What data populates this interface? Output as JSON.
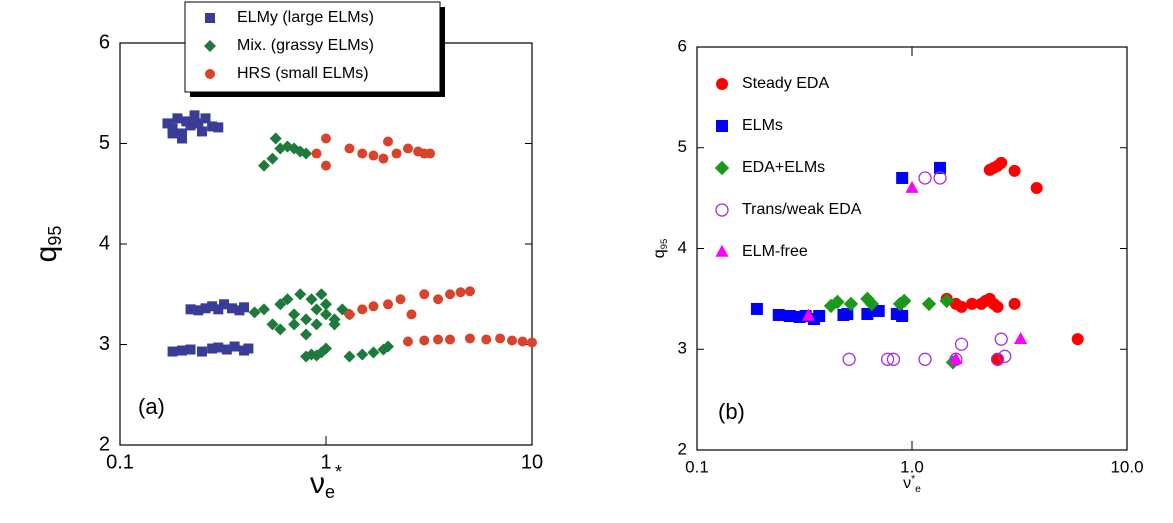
{
  "chart_data": [
    {
      "type": "scatter",
      "annotation": "(a)",
      "xlabel": "ν",
      "xlabel_sub": "e",
      "xlabel_sup": "*",
      "ylabel": "q",
      "ylabel_sub": "95",
      "log_x": true,
      "xlim": [
        0.1,
        10
      ],
      "xticks": [
        0.1,
        1,
        10
      ],
      "ylim": [
        2,
        6
      ],
      "yticks": [
        2,
        3,
        4,
        5,
        6
      ],
      "legend": "top-center",
      "legend_box": true,
      "series": [
        {
          "name": "ELMy (large ELMs)",
          "color": "#3a3d97",
          "marker": "square",
          "x": [
            0.17,
            0.18,
            0.19,
            0.2,
            0.21,
            0.22,
            0.24,
            0.26,
            0.28,
            0.3,
            0.18,
            0.2,
            0.23,
            0.25,
            0.22,
            0.24,
            0.26,
            0.28,
            0.3,
            0.32,
            0.35,
            0.38,
            0.4,
            0.18,
            0.2,
            0.22,
            0.25,
            0.28,
            0.3,
            0.33,
            0.36,
            0.4,
            0.42
          ],
          "values": [
            5.2,
            5.15,
            5.25,
            5.1,
            5.22,
            5.18,
            5.2,
            5.25,
            5.17,
            5.16,
            5.1,
            5.05,
            5.28,
            5.12,
            3.35,
            3.34,
            3.36,
            3.38,
            3.35,
            3.4,
            3.36,
            3.34,
            3.37,
            2.93,
            2.94,
            2.95,
            2.93,
            2.96,
            2.97,
            2.95,
            2.98,
            2.94,
            2.96
          ]
        },
        {
          "name": "Mix. (grassy ELMs)",
          "color": "#1e7a3a",
          "marker": "diamond",
          "x": [
            0.5,
            0.55,
            0.57,
            0.6,
            0.65,
            0.7,
            0.75,
            0.8,
            0.45,
            0.5,
            0.55,
            0.6,
            0.65,
            0.7,
            0.75,
            0.8,
            0.85,
            0.9,
            0.95,
            1.0,
            1.1,
            1.2,
            1.3,
            0.6,
            0.7,
            0.8,
            0.9,
            1.0,
            1.1,
            0.8,
            0.85,
            0.9,
            0.95,
            1.0,
            1.3,
            1.5,
            1.7,
            1.9,
            2.0
          ],
          "values": [
            4.78,
            4.85,
            5.05,
            4.95,
            4.97,
            4.95,
            4.92,
            4.9,
            3.32,
            3.35,
            3.2,
            3.4,
            3.45,
            3.3,
            3.5,
            3.25,
            3.45,
            3.35,
            3.5,
            3.4,
            3.25,
            3.35,
            3.3,
            3.15,
            3.2,
            3.1,
            3.2,
            3.3,
            3.2,
            2.88,
            2.9,
            2.89,
            2.92,
            2.96,
            2.88,
            2.9,
            2.92,
            2.95,
            2.98
          ]
        },
        {
          "name": "HRS (small ELMs)",
          "color": "#d9432c",
          "marker": "circle",
          "x": [
            0.9,
            1.0,
            1.0,
            1.3,
            1.5,
            1.7,
            1.9,
            2.0,
            2.2,
            2.5,
            2.8,
            3.0,
            3.2,
            1.3,
            1.5,
            1.7,
            2.0,
            2.3,
            2.6,
            3.0,
            3.5,
            4.0,
            4.5,
            5.0,
            2.5,
            3.0,
            3.5,
            4.0,
            5.0,
            6.0,
            7.0,
            8.0,
            9.0,
            10.0
          ],
          "values": [
            4.9,
            4.78,
            5.05,
            4.95,
            4.9,
            4.88,
            4.85,
            5.02,
            4.9,
            4.95,
            4.92,
            4.9,
            4.9,
            3.3,
            3.35,
            3.38,
            3.4,
            3.45,
            3.3,
            3.5,
            3.45,
            3.5,
            3.52,
            3.53,
            3.03,
            3.04,
            3.05,
            3.05,
            3.06,
            3.05,
            3.06,
            3.04,
            3.03,
            3.02
          ]
        }
      ]
    },
    {
      "type": "scatter",
      "annotation": "(b)",
      "xlabel": "ν",
      "xlabel_sub": "e",
      "xlabel_sup": "*",
      "ylabel": "q",
      "ylabel_sub": "95",
      "log_x": true,
      "xlim": [
        0.1,
        10
      ],
      "xticks": [
        0.1,
        {
          "value": 1,
          "label": "1.0"
        },
        {
          "value": 10,
          "label": "10.0"
        }
      ],
      "ylim": [
        2,
        6
      ],
      "yticks": [
        2,
        3,
        4,
        5,
        6
      ],
      "legend": "top-left",
      "legend_box": false,
      "series": [
        {
          "name": "Steady EDA",
          "color": "#ff0000",
          "marker": "circle",
          "x": [
            1.45,
            1.6,
            1.7,
            1.9,
            2.1,
            2.2,
            2.3,
            2.4,
            2.5,
            2.5,
            3.0,
            5.9,
            2.3,
            2.4,
            2.5,
            2.6,
            3.0,
            3.8
          ],
          "values": [
            3.5,
            3.45,
            3.42,
            3.45,
            3.45,
            3.48,
            3.5,
            3.45,
            3.42,
            2.9,
            3.45,
            3.1,
            4.78,
            4.8,
            4.82,
            4.85,
            4.77,
            4.6
          ]
        },
        {
          "name": "ELMs",
          "color": "#0000ff",
          "marker": "square",
          "x": [
            0.19,
            0.24,
            0.27,
            0.3,
            0.32,
            0.35,
            0.37,
            0.48,
            0.5,
            0.62,
            0.7,
            0.85,
            0.9,
            0.9,
            1.35
          ],
          "values": [
            3.4,
            3.34,
            3.33,
            3.32,
            3.33,
            3.3,
            3.33,
            3.34,
            3.35,
            3.35,
            3.38,
            3.35,
            3.33,
            4.7,
            4.8
          ]
        },
        {
          "name": "EDA+ELMs",
          "color": "#1a9a1a",
          "marker": "diamond",
          "x": [
            0.42,
            0.45,
            0.52,
            0.62,
            0.65,
            0.88,
            0.92,
            1.2,
            1.45,
            1.55
          ],
          "values": [
            3.43,
            3.47,
            3.45,
            3.5,
            3.45,
            3.45,
            3.48,
            3.45,
            3.48,
            2.87
          ]
        },
        {
          "name": "Trans/weak EDA",
          "color": "#a030e0",
          "marker": "open-circle",
          "x": [
            0.51,
            0.77,
            0.82,
            1.15,
            1.6,
            1.7,
            2.5,
            2.6,
            2.7,
            1.15,
            1.35
          ],
          "values": [
            2.9,
            2.9,
            2.9,
            2.9,
            2.9,
            3.05,
            2.9,
            3.1,
            2.93,
            4.7,
            4.7
          ]
        },
        {
          "name": "ELM-free",
          "color": "#ff00ff",
          "marker": "triangle",
          "x": [
            0.33,
            1.0,
            1.6,
            3.2
          ],
          "values": [
            3.33,
            4.6,
            2.9,
            3.1
          ]
        }
      ]
    }
  ]
}
